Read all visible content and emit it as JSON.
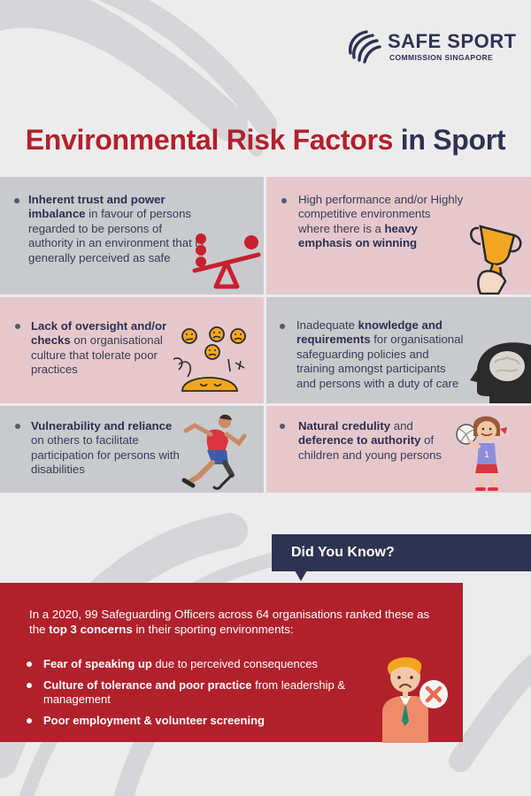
{
  "brand": {
    "name": "SAFE SPORT",
    "subtitle": "COMMISSION SINGAPORE"
  },
  "title": {
    "part1": "Environmental Risk Factors",
    "part2": "in Sport"
  },
  "factors": [
    {
      "bold": "Inherent trust and power imbalance",
      "rest": " in favour of persons regarded to be persons of authority in an environment that is generally perceived as safe",
      "icon": "seesaw-icon"
    },
    {
      "pre": "High performance and/or Highly competitive environments where there is a ",
      "bold": "heavy emphasis on winning",
      "icon": "trophy-icon"
    },
    {
      "bold": "Lack of oversight and/or checks",
      "rest": " on organisational culture that tolerate poor practices",
      "icon": "emotions-icon"
    },
    {
      "pre": "Inadequate ",
      "bold": "knowledge and requirements",
      "rest": " for organisational safeguarding policies and training amongst participants and persons with a duty of care",
      "icon": "head-brain-icon"
    },
    {
      "bold": "Vulnerability and reliance",
      "rest": " on others to facilitate participation for persons with disabilities",
      "icon": "runner-prosthetic-icon"
    },
    {
      "bold": "Natural credulity",
      "mid": " and ",
      "bold2": "deference to authority",
      "rest": " of children and young persons",
      "icon": "girl-volleyball-icon"
    }
  ],
  "did_you_know": {
    "label": "Did You Know?",
    "intro_pre": "In a 2020, 99 Safeguarding Officers across 64 organisations ranked these as the ",
    "intro_bold": "top 3 concerns",
    "intro_post": " in their sporting environments:",
    "concerns": [
      {
        "bold": "Fear of speaking up",
        "rest": " due to perceived consequences"
      },
      {
        "bold": "Culture of tolerance and poor practice",
        "rest": " from leadership & management"
      },
      {
        "bold": "Poor employment & volunteer screening",
        "rest": ""
      }
    ]
  },
  "colors": {
    "brand_red": "#b1212c",
    "brand_navy": "#2e3352",
    "card_grey": "#c9cacd",
    "card_pink": "#e6c8cc",
    "page_bg": "#ececed"
  }
}
